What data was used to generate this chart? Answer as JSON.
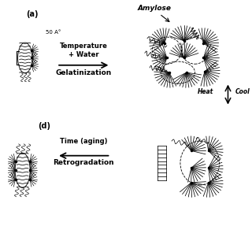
{
  "bg_color": "#ffffff",
  "label_a": "(a)",
  "label_d": "(d)",
  "label_amylose": "Amylose",
  "label_temp": "Temperature\n+ Water",
  "label_gelat": "Gelatinization",
  "label_heat": "Heat",
  "label_cool": "Cool",
  "label_time": "Time (aging)",
  "label_retro": "Retrogradation",
  "label_50": "50 A°",
  "text_color": "#000000",
  "line_color": "#000000",
  "fig_width": 3.2,
  "fig_height": 3.2,
  "dpi": 100
}
